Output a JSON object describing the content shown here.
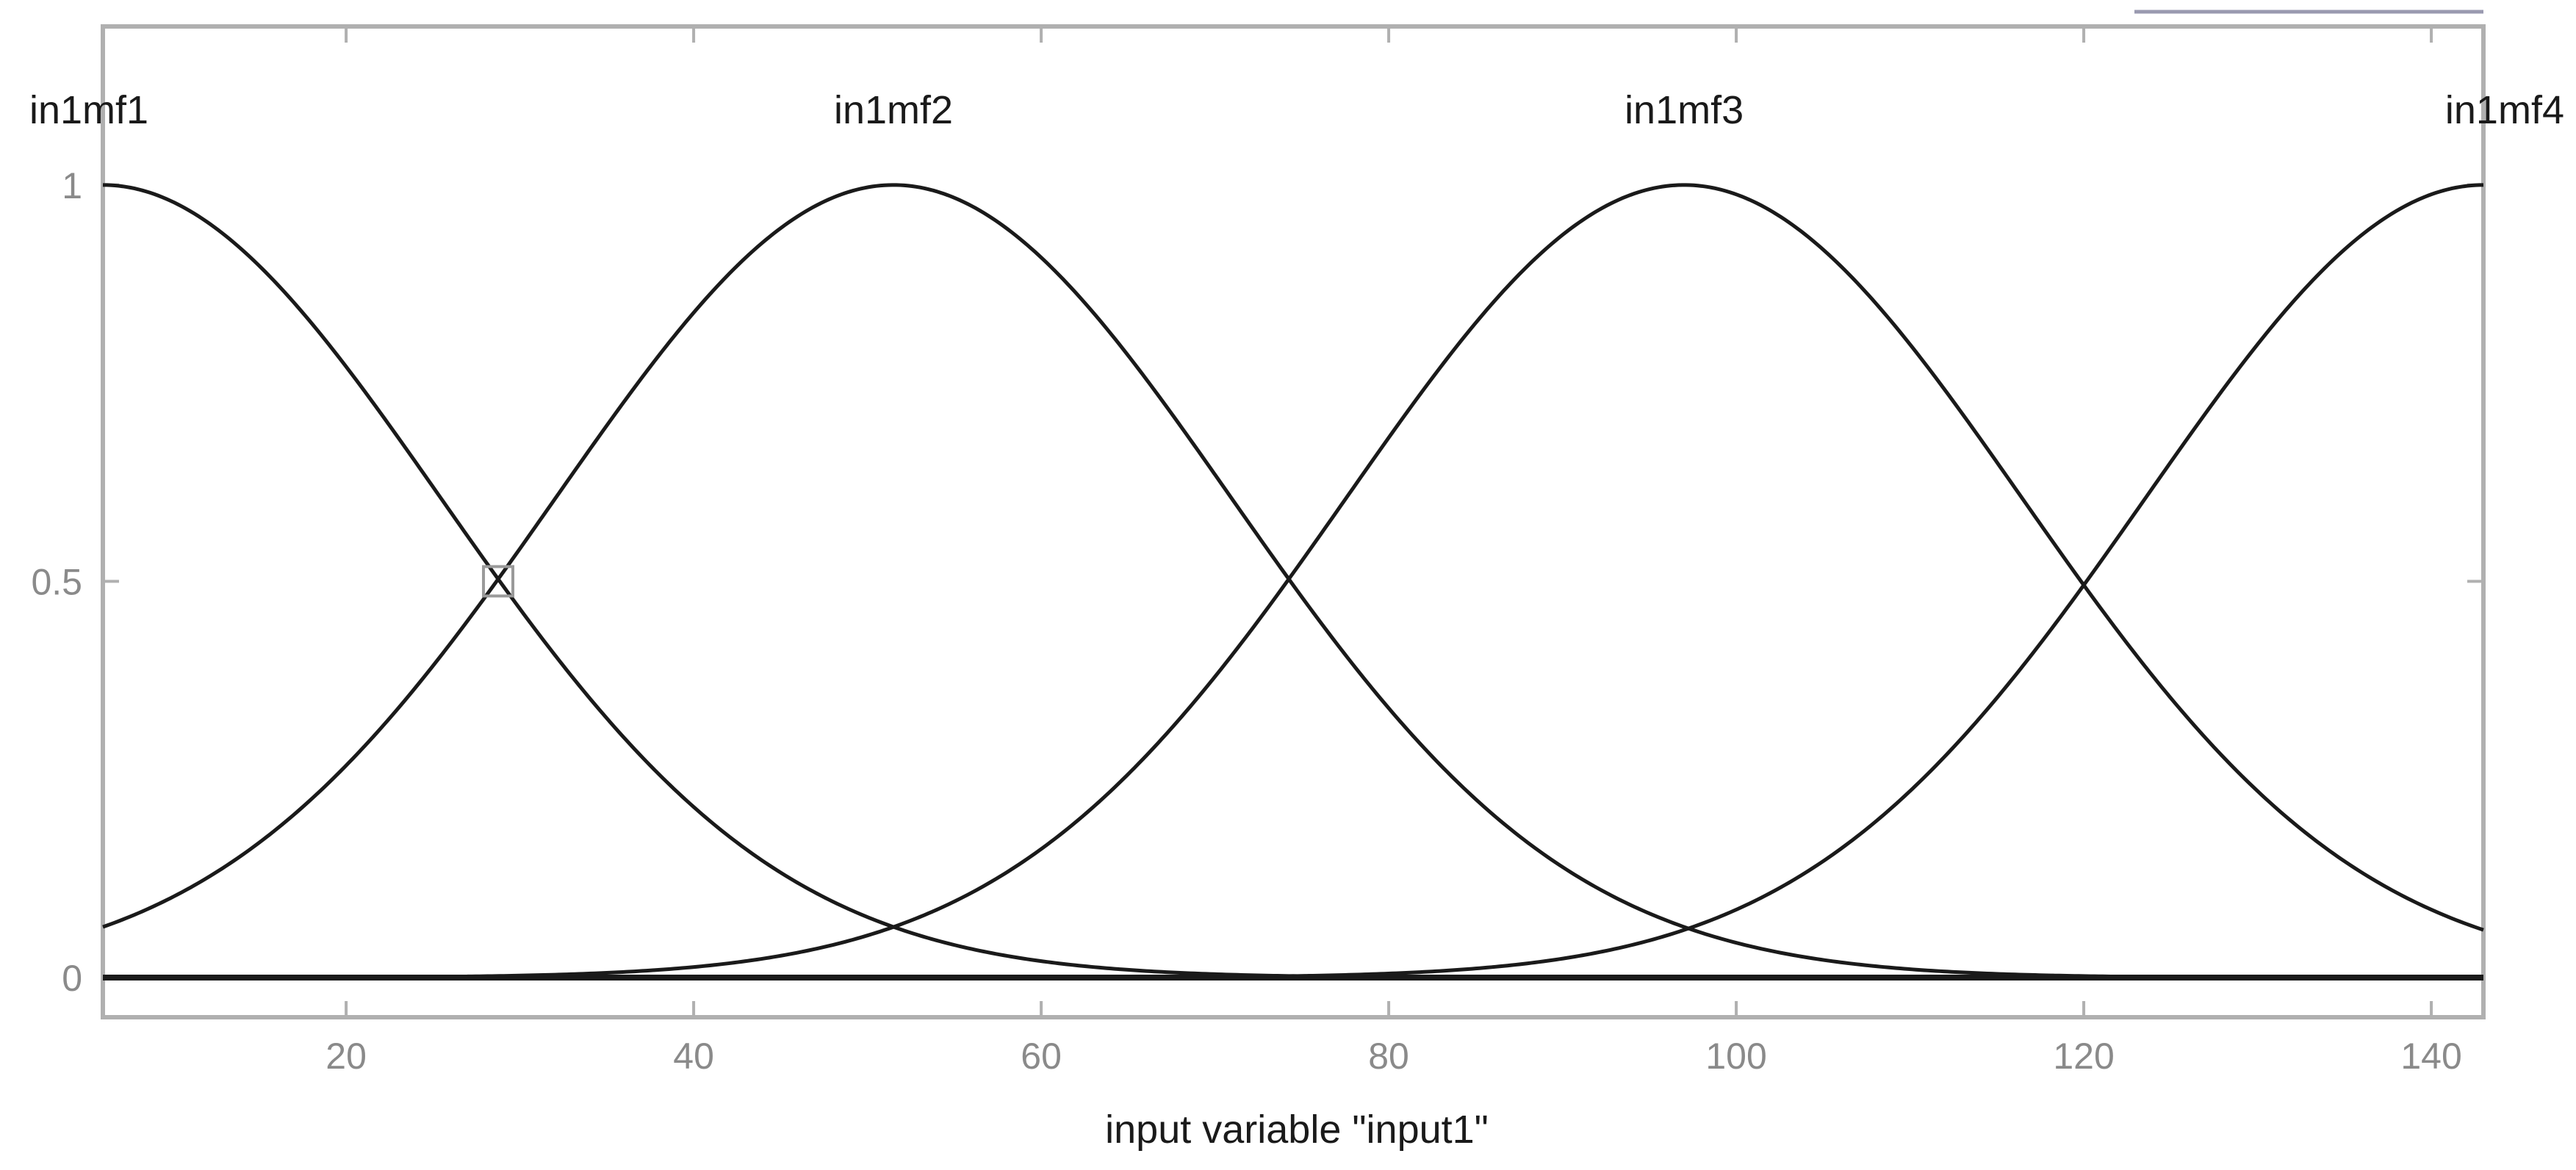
{
  "chart_data": {
    "type": "line",
    "title": "",
    "xlabel": "input variable \"input1\"",
    "ylabel": "",
    "xlim": [
      6,
      143
    ],
    "ylim": [
      -0.05,
      1.2
    ],
    "xticks": [
      20,
      40,
      60,
      80,
      100,
      120,
      140
    ],
    "xtick_labels": [
      "20",
      "40",
      "60",
      "80",
      "100",
      "120",
      "140"
    ],
    "yticks": [
      0,
      0.5,
      1
    ],
    "ytick_labels": [
      "0",
      "0.5",
      "1"
    ],
    "grid": false,
    "legend": "none",
    "series": [
      {
        "name": "in1mf1",
        "function": "gaussmf",
        "sigma": 19.4,
        "center": 6
      },
      {
        "name": "in1mf2",
        "function": "gaussmf",
        "sigma": 19.4,
        "center": 51.5
      },
      {
        "name": "in1mf3",
        "function": "gaussmf",
        "sigma": 19.4,
        "center": 97
      },
      {
        "name": "in1mf4",
        "function": "gaussmf",
        "sigma": 19.4,
        "center": 143
      }
    ],
    "colors": {
      "curve": "#1a1a1a",
      "frame": "#b0b0b0",
      "tick_text": "#8a8a8a",
      "label_text": "#1a1a1a"
    }
  }
}
